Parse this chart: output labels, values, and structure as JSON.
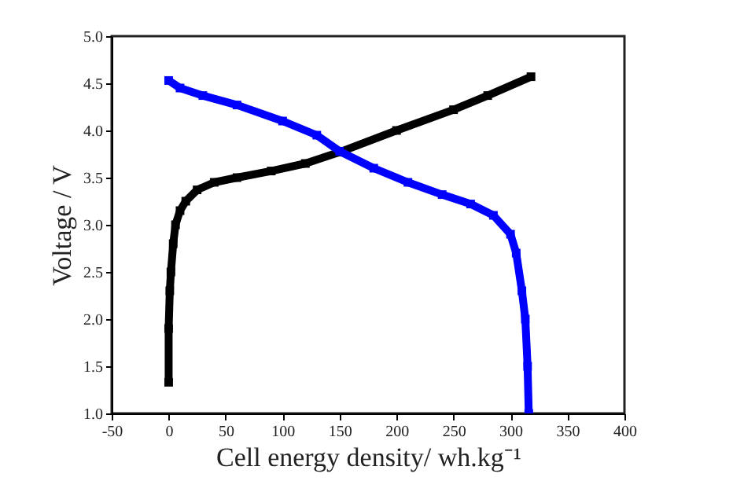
{
  "chart_data": {
    "type": "line",
    "xlabel": "Cell energy density/ wh.kg⁻¹",
    "ylabel": "Voltage / V",
    "xlim": [
      -50,
      400
    ],
    "xticks": [
      -50,
      0,
      50,
      100,
      150,
      200,
      250,
      300,
      350,
      400
    ],
    "ylim": [
      1.0,
      5.0
    ],
    "yticks": [
      {
        "value": 1.0,
        "label": "1.0"
      },
      1.5,
      {
        "value": 2.0,
        "label": "2.0"
      },
      2.5,
      {
        "value": 3.0,
        "label": "3.0"
      },
      3.5,
      {
        "value": 4.0,
        "label": "4.0"
      },
      4.5,
      {
        "value": 5.0,
        "label": "5.0"
      }
    ],
    "marker": "square",
    "series": [
      {
        "color": "#000000",
        "x": [
          0,
          0,
          1,
          2,
          4,
          6,
          10,
          15,
          25,
          40,
          60,
          90,
          120,
          150,
          200,
          250,
          280,
          318
        ],
        "values": [
          1.33,
          1.9,
          2.3,
          2.5,
          2.8,
          3.0,
          3.15,
          3.25,
          3.37,
          3.45,
          3.5,
          3.57,
          3.65,
          3.77,
          4.0,
          4.22,
          4.37,
          4.57
        ]
      },
      {
        "color": "#0000ff",
        "x": [
          0,
          10,
          30,
          60,
          100,
          130,
          150,
          180,
          210,
          240,
          265,
          285,
          300,
          305,
          310,
          313,
          315,
          316
        ],
        "values": [
          4.53,
          4.45,
          4.37,
          4.27,
          4.1,
          3.95,
          3.78,
          3.6,
          3.45,
          3.32,
          3.22,
          3.1,
          2.9,
          2.7,
          2.3,
          2.0,
          1.5,
          1.0
        ]
      }
    ]
  }
}
